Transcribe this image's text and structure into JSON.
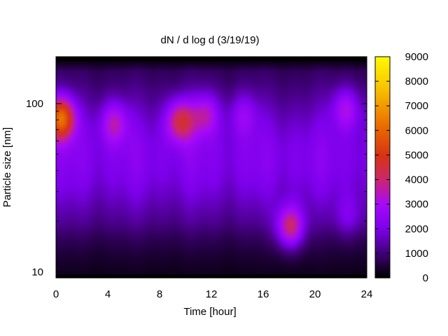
{
  "chart_data": {
    "type": "heatmap",
    "title": "dN / d log d (3/19/19)",
    "xlabel": "Time [hour]",
    "ylabel": "Particle size [nm]",
    "xlim": [
      0,
      24
    ],
    "ylim": [
      9.2,
      190
    ],
    "y_scale": "log",
    "x_ticks": [
      0,
      4,
      8,
      12,
      16,
      20,
      24
    ],
    "y_ticks": [
      10,
      100
    ],
    "colorbar": {
      "range": [
        0,
        9000
      ],
      "ticks": [
        0,
        1000,
        2000,
        3000,
        4000,
        5000,
        6000,
        7000,
        8000,
        9000
      ],
      "palette": "black-purple-red-orange-yellow"
    },
    "background_level": 1500,
    "features": [
      {
        "time": 0.4,
        "size": 85,
        "value": 6200
      },
      {
        "time": 4.5,
        "size": 80,
        "value": 3400
      },
      {
        "time": 9.6,
        "size": 82,
        "value": 4500
      },
      {
        "time": 11.5,
        "size": 90,
        "value": 3500
      },
      {
        "time": 14.5,
        "size": 90,
        "value": 2700
      },
      {
        "time": 18.1,
        "size": 18,
        "value": 4700
      },
      {
        "time": 22.4,
        "size": 98,
        "value": 3300
      },
      {
        "time": 22.6,
        "size": 21,
        "value": 2500
      }
    ]
  }
}
